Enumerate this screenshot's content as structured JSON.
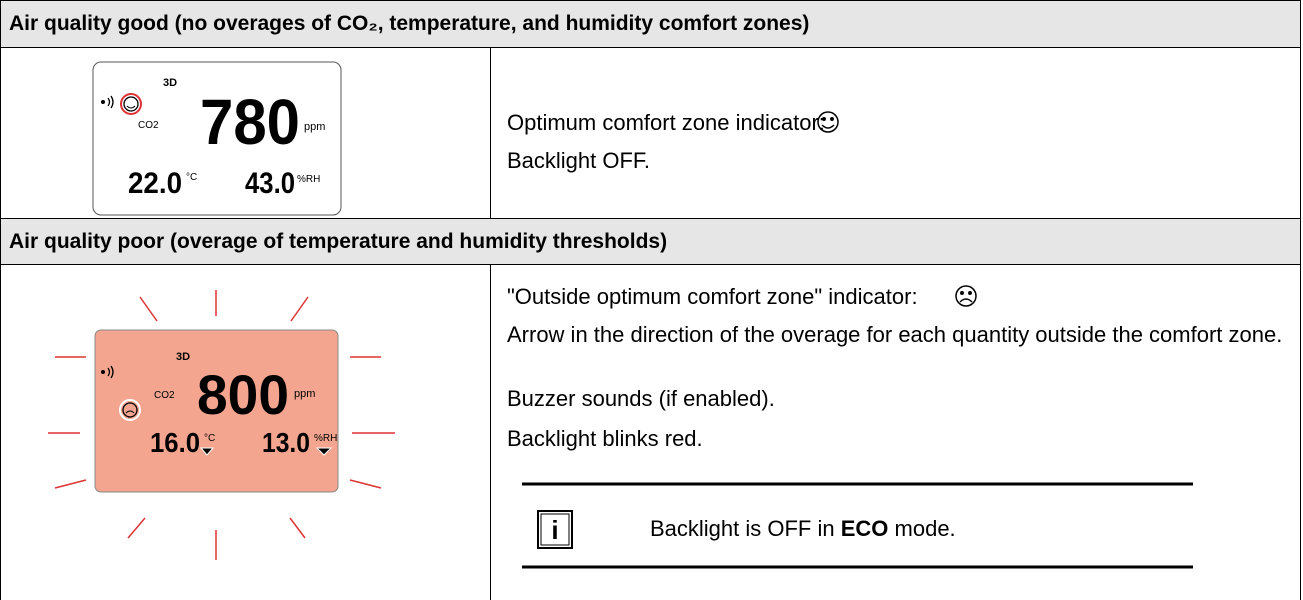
{
  "table": {
    "rows": [
      {
        "header": "Air quality good (no overages of CO₂, temperature, and humidity comfort zones)",
        "display": {
          "mode": "3D",
          "co2_label": "CO2",
          "co2": "780",
          "co2_unit": "ppm",
          "temperature": "22.0",
          "temperature_unit": "°C",
          "humidity": "43.0",
          "humidity_unit": "%RH"
        },
        "description": [
          "Optimum comfort zone indicator:",
          "Backlight OFF."
        ]
      },
      {
        "header": "Air quality poor (overage of temperature and humidity thresholds)",
        "display": {
          "mode": "3D",
          "co2_label": "CO2",
          "co2": "800",
          "co2_unit": "ppm",
          "temperature": "16.0",
          "temperature_unit": "°C",
          "humidity": "13.0",
          "humidity_unit": "%RH"
        },
        "description": [
          "\"Outside optimum comfort zone\" indicator:",
          "Arrow in the direction of the overage for each quantity outside the comfort zone.",
          "Buzzer sounds (if enabled).",
          "Backlight blinks red."
        ],
        "note": {
          "before": "Backlight is OFF in ",
          "emphasis": "ECO",
          "after": " mode."
        }
      }
    ]
  }
}
